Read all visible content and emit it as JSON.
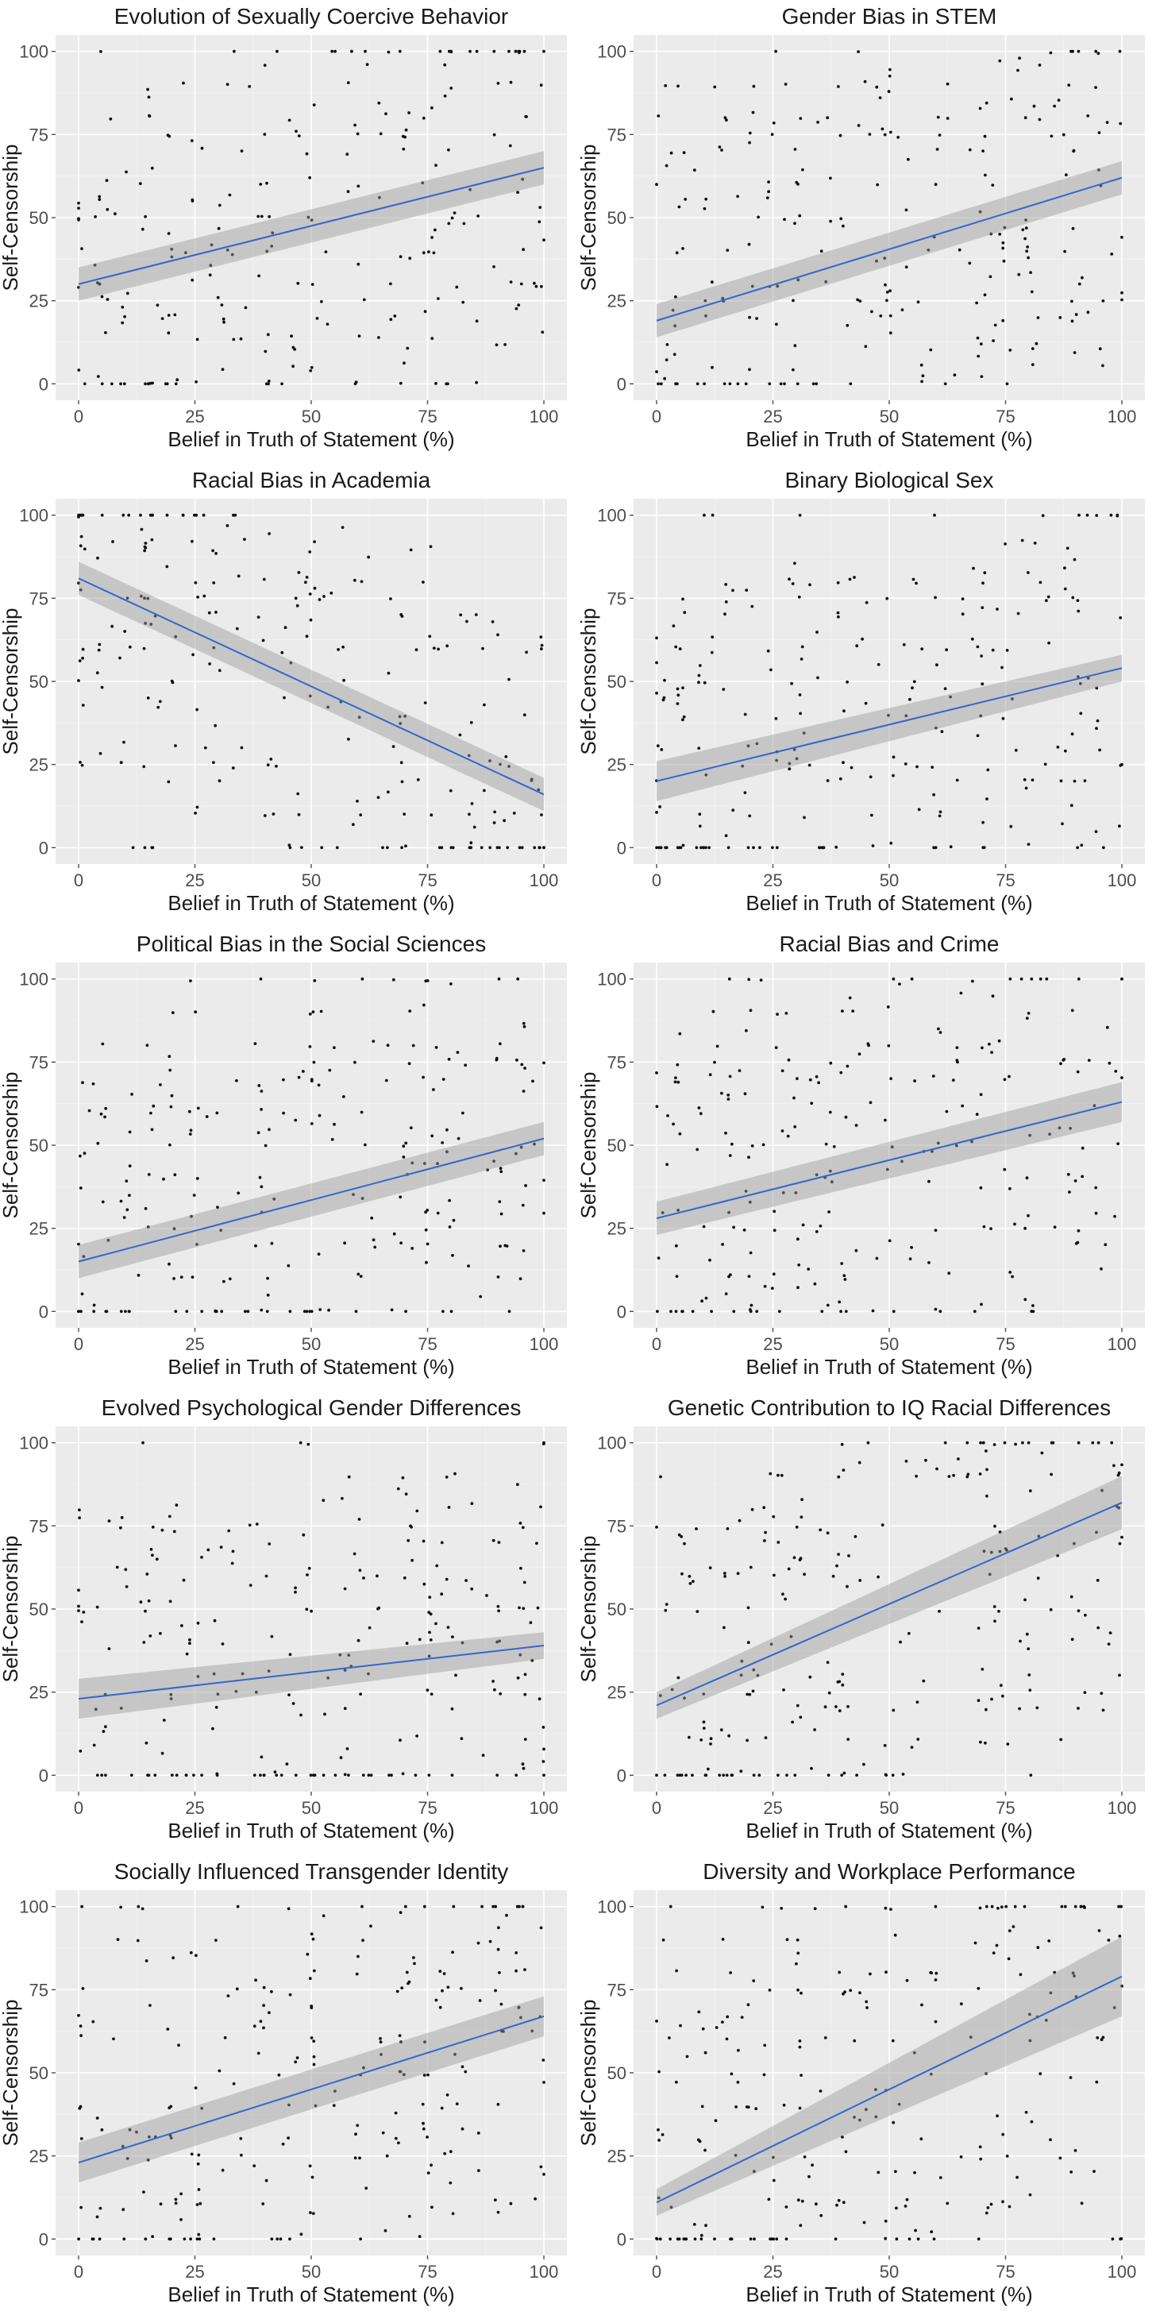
{
  "figure": {
    "xlabel": "Belief in Truth of Statement (%)",
    "ylabel": "Self-Censorship",
    "x_ticks": [
      "0",
      "25",
      "50",
      "75",
      "100"
    ],
    "y_ticks": [
      "0",
      "25",
      "50",
      "75",
      "100"
    ]
  },
  "chart_data": [
    {
      "type": "scatter",
      "title": "Evolution of Sexually Coercive Behavior",
      "xlabel": "Belief in Truth of Statement (%)",
      "ylabel": "Self-Censorship",
      "xlim": [
        0,
        100
      ],
      "ylim": [
        0,
        100
      ],
      "fit_line": {
        "x": [
          0,
          100
        ],
        "y": [
          30,
          65
        ],
        "band": [
          5,
          5
        ],
        "color": "#3366cc"
      },
      "grid": true,
      "points_note": "scattered individual responses"
    },
    {
      "type": "scatter",
      "title": "Gender Bias in STEM",
      "xlabel": "Belief in Truth of Statement (%)",
      "ylabel": "Self-Censorship",
      "xlim": [
        0,
        100
      ],
      "ylim": [
        0,
        100
      ],
      "fit_line": {
        "x": [
          0,
          100
        ],
        "y": [
          19,
          62
        ],
        "band": [
          5,
          5
        ],
        "color": "#3366cc"
      },
      "grid": true
    },
    {
      "type": "scatter",
      "title": "Racial Bias in Academia",
      "xlabel": "Belief in Truth of Statement (%)",
      "ylabel": "Self-Censorship",
      "xlim": [
        0,
        100
      ],
      "ylim": [
        0,
        100
      ],
      "fit_line": {
        "x": [
          0,
          100
        ],
        "y": [
          81,
          16
        ],
        "band": [
          5,
          5
        ],
        "color": "#3366cc"
      },
      "grid": true
    },
    {
      "type": "scatter",
      "title": "Binary Biological Sex",
      "xlabel": "Belief in Truth of Statement (%)",
      "ylabel": "Self-Censorship",
      "xlim": [
        0,
        100
      ],
      "ylim": [
        0,
        100
      ],
      "fit_line": {
        "x": [
          0,
          100
        ],
        "y": [
          20,
          54
        ],
        "band": [
          6,
          4
        ],
        "color": "#3366cc"
      },
      "grid": true
    },
    {
      "type": "scatter",
      "title": "Political Bias in the Social Sciences",
      "xlabel": "Belief in Truth of Statement (%)",
      "ylabel": "Self-Censorship",
      "xlim": [
        0,
        100
      ],
      "ylim": [
        0,
        100
      ],
      "fit_line": {
        "x": [
          0,
          100
        ],
        "y": [
          15,
          52
        ],
        "band": [
          5,
          5
        ],
        "color": "#3366cc"
      },
      "grid": true
    },
    {
      "type": "scatter",
      "title": "Racial Bias and Crime",
      "xlabel": "Belief in Truth of Statement (%)",
      "ylabel": "Self-Censorship",
      "xlim": [
        0,
        100
      ],
      "ylim": [
        0,
        100
      ],
      "fit_line": {
        "x": [
          0,
          100
        ],
        "y": [
          28,
          63
        ],
        "band": [
          5,
          6
        ],
        "color": "#3366cc"
      },
      "grid": true
    },
    {
      "type": "scatter",
      "title": "Evolved Psychological Gender Differences",
      "xlabel": "Belief in Truth of Statement (%)",
      "ylabel": "Self-Censorship",
      "xlim": [
        0,
        100
      ],
      "ylim": [
        0,
        100
      ],
      "fit_line": {
        "x": [
          0,
          100
        ],
        "y": [
          23,
          39
        ],
        "band": [
          6,
          4
        ],
        "color": "#3366cc"
      },
      "grid": true
    },
    {
      "type": "scatter",
      "title": "Genetic Contribution to IQ Racial Differences",
      "xlabel": "Belief in Truth of Statement (%)",
      "ylabel": "Self-Censorship",
      "xlim": [
        0,
        100
      ],
      "ylim": [
        0,
        100
      ],
      "fit_line": {
        "x": [
          0,
          100
        ],
        "y": [
          21,
          82
        ],
        "band": [
          4,
          8
        ],
        "color": "#3366cc"
      },
      "grid": true
    },
    {
      "type": "scatter",
      "title": "Socially Influenced Transgender Identity",
      "xlabel": "Belief in Truth of Statement (%)",
      "ylabel": "Self-Censorship",
      "xlim": [
        0,
        100
      ],
      "ylim": [
        0,
        100
      ],
      "fit_line": {
        "x": [
          0,
          100
        ],
        "y": [
          23,
          67
        ],
        "band": [
          6,
          6
        ],
        "color": "#3366cc"
      },
      "grid": true
    },
    {
      "type": "scatter",
      "title": "Diversity and Workplace Performance",
      "xlabel": "Belief in Truth of Statement (%)",
      "ylabel": "Self-Censorship",
      "xlim": [
        0,
        100
      ],
      "ylim": [
        0,
        100
      ],
      "fit_line": {
        "x": [
          0,
          100
        ],
        "y": [
          11,
          79
        ],
        "band": [
          4,
          12
        ],
        "color": "#3366cc"
      },
      "grid": true
    }
  ]
}
